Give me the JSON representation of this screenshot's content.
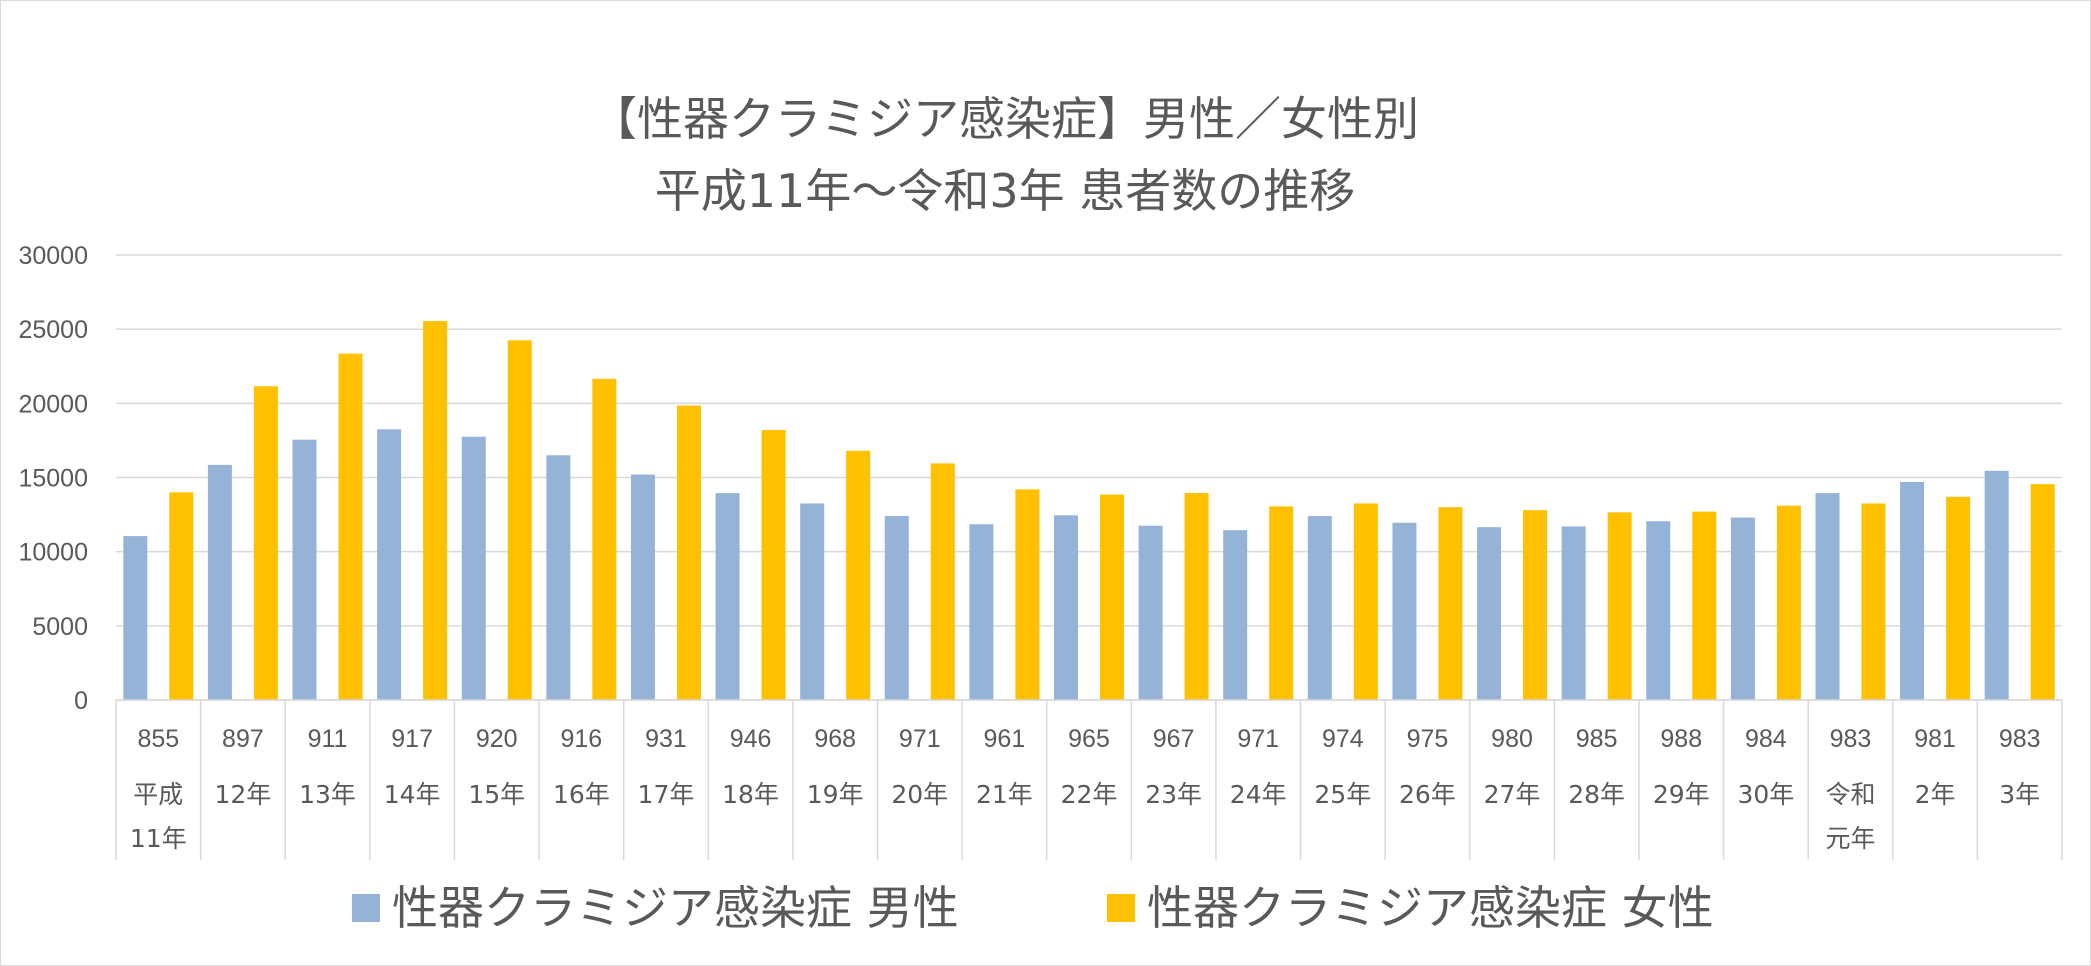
{
  "chart_data": {
    "type": "bar",
    "title": [
      "【性器クラミジア感染症】男性／女性別",
      "平成11年〜令和3年 患者数の推移"
    ],
    "ylim": [
      0,
      30000
    ],
    "yticks": [
      "30000",
      "25000",
      "20000",
      "15000",
      "10000",
      "5000",
      "0"
    ],
    "ytick_values": [
      30000,
      25000,
      20000,
      15000,
      10000,
      5000,
      0
    ],
    "grid": true,
    "legend_position": "bottom",
    "categories": [
      {
        "count": "855",
        "label": [
          "平成",
          "11年"
        ]
      },
      {
        "count": "897",
        "label": [
          "12年"
        ]
      },
      {
        "count": "911",
        "label": [
          "13年"
        ]
      },
      {
        "count": "917",
        "label": [
          "14年"
        ]
      },
      {
        "count": "920",
        "label": [
          "15年"
        ]
      },
      {
        "count": "916",
        "label": [
          "16年"
        ]
      },
      {
        "count": "931",
        "label": [
          "17年"
        ]
      },
      {
        "count": "946",
        "label": [
          "18年"
        ]
      },
      {
        "count": "968",
        "label": [
          "19年"
        ]
      },
      {
        "count": "971",
        "label": [
          "20年"
        ]
      },
      {
        "count": "961",
        "label": [
          "21年"
        ]
      },
      {
        "count": "965",
        "label": [
          "22年"
        ]
      },
      {
        "count": "967",
        "label": [
          "23年"
        ]
      },
      {
        "count": "971",
        "label": [
          "24年"
        ]
      },
      {
        "count": "974",
        "label": [
          "25年"
        ]
      },
      {
        "count": "975",
        "label": [
          "26年"
        ]
      },
      {
        "count": "980",
        "label": [
          "27年"
        ]
      },
      {
        "count": "985",
        "label": [
          "28年"
        ]
      },
      {
        "count": "988",
        "label": [
          "29年"
        ]
      },
      {
        "count": "984",
        "label": [
          "30年"
        ]
      },
      {
        "count": "983",
        "label": [
          "令和",
          "元年"
        ]
      },
      {
        "count": "981",
        "label": [
          "2年"
        ]
      },
      {
        "count": "983",
        "label": [
          "3年"
        ]
      }
    ],
    "series": [
      {
        "name": "性器クラミジア感染症 男性",
        "color": "#95b3d7",
        "values": [
          11050,
          15850,
          17550,
          18250,
          17750,
          16500,
          15200,
          13950,
          13250,
          12400,
          11850,
          12450,
          11750,
          11450,
          12400,
          11950,
          11650,
          11700,
          12050,
          12300,
          13950,
          14700,
          15450
        ]
      },
      {
        "name": "性器クラミジア感染症 女性",
        "color": "#ffc000",
        "values": [
          14000,
          21150,
          23350,
          25550,
          24250,
          21650,
          19850,
          18200,
          16800,
          15950,
          14200,
          13850,
          13950,
          13050,
          13250,
          13000,
          12800,
          12650,
          12700,
          13100,
          13250,
          13700,
          14550
        ]
      }
    ]
  }
}
